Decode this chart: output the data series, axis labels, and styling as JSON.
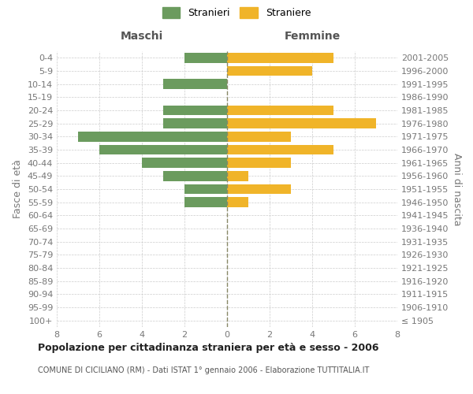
{
  "age_groups": [
    "100+",
    "95-99",
    "90-94",
    "85-89",
    "80-84",
    "75-79",
    "70-74",
    "65-69",
    "60-64",
    "55-59",
    "50-54",
    "45-49",
    "40-44",
    "35-39",
    "30-34",
    "25-29",
    "20-24",
    "15-19",
    "10-14",
    "5-9",
    "0-4"
  ],
  "birth_years": [
    "≤ 1905",
    "1906-1910",
    "1911-1915",
    "1916-1920",
    "1921-1925",
    "1926-1930",
    "1931-1935",
    "1936-1940",
    "1941-1945",
    "1946-1950",
    "1951-1955",
    "1956-1960",
    "1961-1965",
    "1966-1970",
    "1971-1975",
    "1976-1980",
    "1981-1985",
    "1986-1990",
    "1991-1995",
    "1996-2000",
    "2001-2005"
  ],
  "maschi": [
    0,
    0,
    0,
    0,
    0,
    0,
    0,
    0,
    0,
    2,
    2,
    3,
    4,
    6,
    7,
    3,
    3,
    0,
    3,
    0,
    2
  ],
  "femmine": [
    0,
    0,
    0,
    0,
    0,
    0,
    0,
    0,
    0,
    1,
    3,
    1,
    3,
    5,
    3,
    7,
    5,
    0,
    0,
    4,
    5
  ],
  "color_maschi": "#6b9b5e",
  "color_femmine": "#f0b429",
  "bar_height": 0.75,
  "xlim": 8,
  "title": "Popolazione per cittadinanza straniera per età e sesso - 2006",
  "subtitle": "COMUNE DI CICILIANO (RM) - Dati ISTAT 1° gennaio 2006 - Elaborazione TUTTITALIA.IT",
  "ylabel_left": "Fasce di età",
  "ylabel_right": "Anni di nascita",
  "label_maschi": "Stranieri",
  "label_femmine": "Straniere",
  "header_maschi": "Maschi",
  "header_femmine": "Femmine",
  "background_color": "#ffffff",
  "grid_color": "#cccccc",
  "center_line_color": "#888866",
  "tick_color": "#777777",
  "title_fontsize": 9,
  "subtitle_fontsize": 7,
  "tick_fontsize": 8,
  "header_fontsize": 10,
  "legend_fontsize": 9,
  "ylabel_fontsize": 9
}
